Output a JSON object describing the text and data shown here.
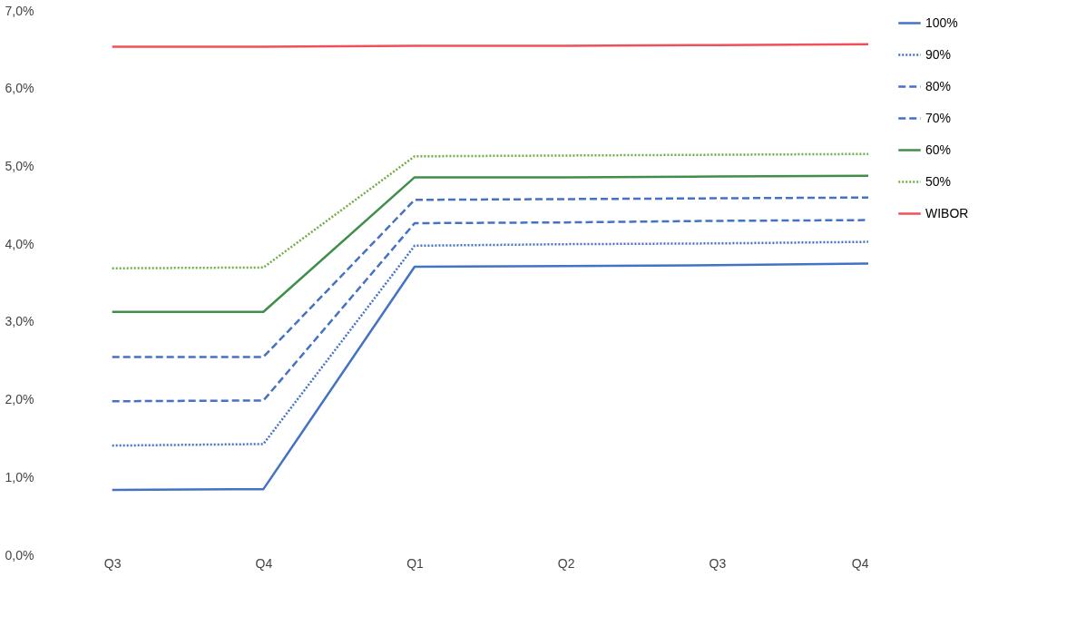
{
  "chart_data": {
    "type": "line",
    "categories": [
      "Q3",
      "Q4",
      "Q1",
      "Q2",
      "Q3",
      "Q4"
    ],
    "ylim": [
      0,
      7
    ],
    "yticks": [
      {
        "value": 0,
        "label": "0,0%"
      },
      {
        "value": 1,
        "label": "1,0%"
      },
      {
        "value": 2,
        "label": "2,0%"
      },
      {
        "value": 3,
        "label": "3,0%"
      },
      {
        "value": 4,
        "label": "4,0%"
      },
      {
        "value": 5,
        "label": "5,0%"
      },
      {
        "value": 6,
        "label": "6,0%"
      },
      {
        "value": 7,
        "label": "7,0%"
      }
    ],
    "grid": false,
    "legend": "right",
    "marker": "none",
    "series": [
      {
        "name": "100%",
        "color": "#4472c4",
        "line_style": "solid",
        "values": [
          0.84,
          0.85,
          3.71,
          3.72,
          3.73,
          3.75
        ]
      },
      {
        "name": "90%",
        "color": "#4472c4",
        "line_style": "dotted",
        "values": [
          1.41,
          1.43,
          3.98,
          4.0,
          4.01,
          4.03
        ]
      },
      {
        "name": "80%",
        "color": "#4472c4",
        "line_style": "dashed",
        "values": [
          1.98,
          1.99,
          4.27,
          4.28,
          4.3,
          4.31
        ]
      },
      {
        "name": "70%",
        "color": "#4472c4",
        "line_style": "dashed",
        "values": [
          2.55,
          2.55,
          4.57,
          4.58,
          4.59,
          4.6
        ]
      },
      {
        "name": "60%",
        "color": "#3f8f4a",
        "line_style": "solid",
        "values": [
          3.13,
          3.13,
          4.86,
          4.86,
          4.87,
          4.88
        ]
      },
      {
        "name": "50%",
        "color": "#70ad47",
        "line_style": "dotted",
        "values": [
          3.69,
          3.7,
          5.13,
          5.14,
          5.15,
          5.16
        ]
      },
      {
        "name": "WIBOR",
        "color": "#f0505a",
        "line_style": "solid",
        "values": [
          6.54,
          6.54,
          6.55,
          6.55,
          6.56,
          6.57
        ]
      }
    ]
  }
}
